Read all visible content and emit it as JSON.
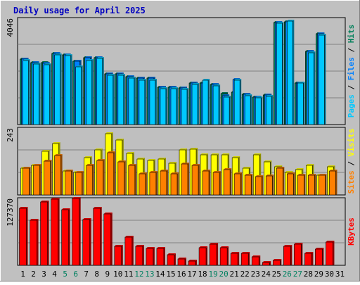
{
  "chart_data": {
    "type": "bar",
    "title": "Daily usage for April 2025",
    "categories": [
      "1",
      "2",
      "3",
      "4",
      "5",
      "6",
      "7",
      "8",
      "9",
      "10",
      "11",
      "12",
      "13",
      "14",
      "15",
      "16",
      "17",
      "18",
      "19",
      "20",
      "21",
      "22",
      "23",
      "24",
      "25",
      "26",
      "27",
      "28",
      "29",
      "30",
      "31"
    ],
    "weekend_days": [
      "5",
      "6",
      "12",
      "13",
      "19",
      "20",
      "26",
      "27"
    ],
    "panels": [
      {
        "id": "hits-files-pages",
        "ymax": 4046,
        "ymax_label": "4046",
        "axis_label_parts": [
          {
            "text": "Pages",
            "color": "#00c8ff"
          },
          {
            "text": " / ",
            "color": "#000000"
          },
          {
            "text": "Files",
            "color": "#0080ff"
          },
          {
            "text": " / ",
            "color": "#000000"
          },
          {
            "text": "Hits",
            "color": "#00805a"
          }
        ],
        "series": [
          {
            "name": "Hits",
            "color": "#00805a",
            "values": [
              2550,
              2400,
              2400,
              2750,
              2700,
              2450,
              2600,
              2600,
              1960,
              1960,
              1860,
              1800,
              1800,
              1450,
              1450,
              1430,
              1600,
              1600,
              1560,
              1200,
              1260,
              1170,
              1070,
              1150,
              3970,
              4000,
              1620,
              2840,
              3520,
              0,
              0
            ]
          },
          {
            "name": "Files",
            "color": "#0080ff",
            "values": [
              2550,
              2400,
              2380,
              2750,
              2700,
              2450,
              2600,
              2600,
              1960,
              1960,
              1860,
              1800,
              1800,
              1450,
              1450,
              1430,
              1620,
              1600,
              1560,
              1120,
              1750,
              1170,
              1070,
              1150,
              3970,
              4000,
              1620,
              2840,
              3520,
              0,
              0
            ]
          },
          {
            "name": "Pages",
            "color": "#00c8ff",
            "values": [
              2500,
              2350,
              2330,
              2700,
              2680,
              2250,
              2500,
              2580,
              1900,
              1900,
              1800,
              1720,
              1720,
              1400,
              1400,
              1380,
              1560,
              1720,
              1500,
              1060,
              1720,
              1120,
              1030,
              1100,
              3930,
              4010,
              1600,
              2800,
              3480,
              0,
              0
            ]
          }
        ]
      },
      {
        "id": "visits-sites",
        "ymax": 243,
        "ymax_label": "243",
        "axis_label_parts": [
          {
            "text": "Sites",
            "color": "#ff8000"
          },
          {
            "text": " / ",
            "color": "#000000"
          },
          {
            "text": "Visits",
            "color": "#ffff00"
          }
        ],
        "series": [
          {
            "name": "Visits",
            "color": "#ffff00",
            "values": [
              100,
              110,
              165,
              192,
              90,
              85,
              140,
              170,
              230,
              205,
              155,
              135,
              130,
              135,
              118,
              170,
              172,
              150,
              150,
              150,
              140,
              100,
              150,
              125,
              105,
              85,
              95,
              110,
              75,
              105,
              0
            ]
          },
          {
            "name": "Sites",
            "color": "#ff8000",
            "values": [
              100,
              110,
              128,
              148,
              90,
              85,
              110,
              130,
              158,
              125,
              110,
              78,
              85,
              90,
              80,
              115,
              112,
              90,
              85,
              95,
              80,
              75,
              68,
              70,
              100,
              80,
              75,
              75,
              75,
              90,
              0
            ]
          }
        ]
      },
      {
        "id": "kbytes",
        "ymax": 127370,
        "ymax_label": "127370",
        "axis_label_parts": [
          {
            "text": "KBytes",
            "color": "#ff0000"
          }
        ],
        "series": [
          {
            "name": "KBytes",
            "color": "#ff0000",
            "values": [
              112000,
              88000,
              125000,
              130000,
              110000,
              132000,
              90000,
              112000,
              101000,
              38000,
              56000,
              37000,
              33000,
              33000,
              21000,
              13000,
              8000,
              35000,
              42000,
              35000,
              23000,
              24000,
              17000,
              6000,
              9000,
              37000,
              41000,
              24000,
              32000,
              46000,
              0
            ]
          }
        ]
      }
    ]
  }
}
